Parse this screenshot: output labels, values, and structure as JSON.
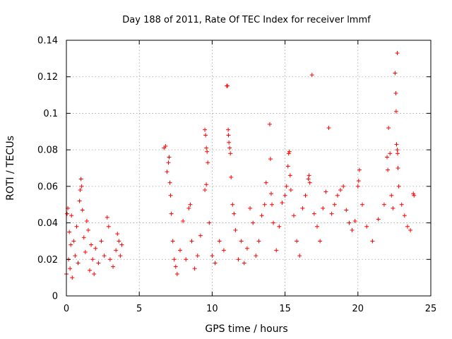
{
  "chart_data": {
    "type": "scatter",
    "title": "Day 188 of 2011, Rate Of TEC Index for receiver lmmf",
    "xlabel": "GPS time / hours",
    "ylabel": "ROTI / TECUs",
    "xlim": [
      0,
      25
    ],
    "ylim": [
      0,
      0.14
    ],
    "x_ticks": [
      "0",
      "5",
      "10",
      "15",
      "20",
      "25"
    ],
    "y_ticks": [
      "0",
      "0.02",
      "0.04",
      "0.06",
      "0.08",
      "0.1",
      "0.12",
      "0.14"
    ],
    "grid": true,
    "marker": "plus",
    "series_color": "#ff0000",
    "series": [
      {
        "points": [
          [
            0.0,
            0.012
          ],
          [
            0.05,
            0.045
          ],
          [
            0.1,
            0.048
          ],
          [
            0.15,
            0.02
          ],
          [
            0.2,
            0.035
          ],
          [
            0.25,
            0.015
          ],
          [
            0.3,
            0.028
          ],
          [
            0.35,
            0.044
          ],
          [
            0.4,
            0.01
          ],
          [
            0.5,
            0.03
          ],
          [
            0.6,
            0.022
          ],
          [
            0.7,
            0.038
          ],
          [
            0.8,
            0.018
          ],
          [
            0.9,
            0.052
          ],
          [
            0.95,
            0.058
          ],
          [
            1.0,
            0.064
          ],
          [
            1.05,
            0.06
          ],
          [
            1.1,
            0.047
          ],
          [
            1.2,
            0.032
          ],
          [
            1.3,
            0.024
          ],
          [
            1.4,
            0.041
          ],
          [
            1.5,
            0.036
          ],
          [
            1.6,
            0.014
          ],
          [
            1.7,
            0.028
          ],
          [
            1.8,
            0.02
          ],
          [
            1.9,
            0.012
          ],
          [
            2.0,
            0.026
          ],
          [
            2.2,
            0.018
          ],
          [
            2.4,
            0.03
          ],
          [
            2.6,
            0.022
          ],
          [
            2.8,
            0.043
          ],
          [
            2.9,
            0.038
          ],
          [
            3.0,
            0.02
          ],
          [
            3.2,
            0.016
          ],
          [
            3.4,
            0.025
          ],
          [
            3.5,
            0.034
          ],
          [
            3.6,
            0.03
          ],
          [
            3.7,
            0.022
          ],
          [
            3.8,
            0.028
          ],
          [
            6.7,
            0.081
          ],
          [
            6.8,
            0.082
          ],
          [
            6.9,
            0.068
          ],
          [
            7.0,
            0.073
          ],
          [
            7.05,
            0.076
          ],
          [
            7.1,
            0.062
          ],
          [
            7.15,
            0.055
          ],
          [
            7.2,
            0.045
          ],
          [
            7.3,
            0.03
          ],
          [
            7.4,
            0.02
          ],
          [
            7.5,
            0.016
          ],
          [
            7.6,
            0.012
          ],
          [
            7.8,
            0.025
          ],
          [
            8.0,
            0.041
          ],
          [
            8.2,
            0.02
          ],
          [
            8.4,
            0.048
          ],
          [
            8.5,
            0.05
          ],
          [
            8.6,
            0.03
          ],
          [
            8.8,
            0.015
          ],
          [
            9.0,
            0.022
          ],
          [
            9.2,
            0.033
          ],
          [
            9.5,
            0.091
          ],
          [
            9.55,
            0.088
          ],
          [
            9.6,
            0.081
          ],
          [
            9.65,
            0.079
          ],
          [
            9.7,
            0.073
          ],
          [
            9.6,
            0.061
          ],
          [
            9.5,
            0.058
          ],
          [
            9.8,
            0.04
          ],
          [
            10.0,
            0.022
          ],
          [
            10.2,
            0.018
          ],
          [
            10.5,
            0.03
          ],
          [
            10.8,
            0.025
          ],
          [
            11.0,
            0.115
          ],
          [
            11.05,
            0.115
          ],
          [
            11.1,
            0.091
          ],
          [
            11.12,
            0.088
          ],
          [
            11.15,
            0.084
          ],
          [
            11.2,
            0.081
          ],
          [
            11.25,
            0.078
          ],
          [
            11.3,
            0.065
          ],
          [
            11.4,
            0.05
          ],
          [
            11.5,
            0.045
          ],
          [
            11.6,
            0.036
          ],
          [
            11.8,
            0.02
          ],
          [
            12.0,
            0.03
          ],
          [
            12.2,
            0.018
          ],
          [
            12.4,
            0.026
          ],
          [
            12.6,
            0.048
          ],
          [
            12.8,
            0.04
          ],
          [
            13.0,
            0.022
          ],
          [
            13.2,
            0.03
          ],
          [
            13.4,
            0.044
          ],
          [
            13.6,
            0.05
          ],
          [
            13.7,
            0.062
          ],
          [
            13.95,
            0.094
          ],
          [
            14.0,
            0.075
          ],
          [
            14.05,
            0.056
          ],
          [
            14.1,
            0.05
          ],
          [
            14.2,
            0.04
          ],
          [
            14.4,
            0.025
          ],
          [
            14.6,
            0.038
          ],
          [
            14.8,
            0.051
          ],
          [
            15.0,
            0.055
          ],
          [
            15.1,
            0.06
          ],
          [
            15.2,
            0.071
          ],
          [
            15.25,
            0.078
          ],
          [
            15.3,
            0.079
          ],
          [
            15.35,
            0.066
          ],
          [
            15.4,
            0.058
          ],
          [
            15.6,
            0.044
          ],
          [
            15.8,
            0.03
          ],
          [
            16.0,
            0.022
          ],
          [
            16.2,
            0.048
          ],
          [
            16.4,
            0.055
          ],
          [
            16.6,
            0.064
          ],
          [
            16.65,
            0.066
          ],
          [
            16.7,
            0.062
          ],
          [
            16.85,
            0.121
          ],
          [
            17.0,
            0.045
          ],
          [
            17.2,
            0.038
          ],
          [
            17.4,
            0.03
          ],
          [
            17.6,
            0.048
          ],
          [
            17.8,
            0.057
          ],
          [
            18.0,
            0.092
          ],
          [
            18.2,
            0.045
          ],
          [
            18.4,
            0.05
          ],
          [
            18.6,
            0.055
          ],
          [
            18.8,
            0.058
          ],
          [
            19.0,
            0.06
          ],
          [
            19.2,
            0.047
          ],
          [
            19.4,
            0.04
          ],
          [
            19.6,
            0.036
          ],
          [
            19.8,
            0.041
          ],
          [
            20.0,
            0.06
          ],
          [
            20.05,
            0.063
          ],
          [
            20.1,
            0.069
          ],
          [
            20.3,
            0.05
          ],
          [
            20.6,
            0.038
          ],
          [
            21.0,
            0.03
          ],
          [
            21.4,
            0.042
          ],
          [
            21.8,
            0.05
          ],
          [
            22.0,
            0.076
          ],
          [
            22.05,
            0.069
          ],
          [
            22.1,
            0.092
          ],
          [
            22.2,
            0.078
          ],
          [
            22.3,
            0.055
          ],
          [
            22.4,
            0.048
          ],
          [
            22.55,
            0.122
          ],
          [
            22.6,
            0.111
          ],
          [
            22.62,
            0.101
          ],
          [
            22.65,
            0.083
          ],
          [
            22.7,
            0.08
          ],
          [
            22.72,
            0.078
          ],
          [
            22.75,
            0.07
          ],
          [
            22.7,
            0.133
          ],
          [
            22.8,
            0.06
          ],
          [
            23.0,
            0.05
          ],
          [
            23.2,
            0.044
          ],
          [
            23.4,
            0.038
          ],
          [
            23.6,
            0.036
          ],
          [
            23.8,
            0.056
          ],
          [
            23.85,
            0.055
          ]
        ]
      }
    ]
  }
}
